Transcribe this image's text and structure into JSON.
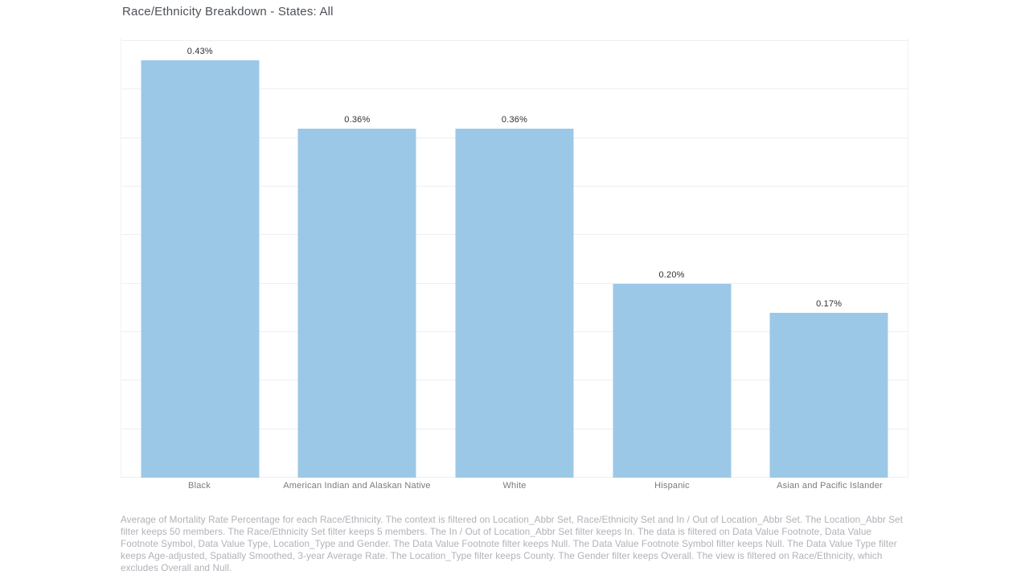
{
  "title": "Race/Ethnicity Breakdown - States: All",
  "chart_data": {
    "type": "bar",
    "title": "Race/Ethnicity Breakdown - States: All",
    "categories": [
      "Black",
      "American Indian and Alaskan Native",
      "White",
      "Hispanic",
      "Asian and Pacific Islander"
    ],
    "values": [
      0.43,
      0.36,
      0.36,
      0.2,
      0.17
    ],
    "value_labels": [
      "0.43%",
      "0.36%",
      "0.36%",
      "0.20%",
      "0.17%"
    ],
    "xlabel": "",
    "ylabel": "",
    "ylim": [
      0,
      0.45
    ],
    "gridline_step": 0.05,
    "grid": "on",
    "legend": "none",
    "bar_color": "#9cc8e8",
    "gridline_color": "#efefef"
  },
  "caption": {
    "text": "Average of Mortality Rate Percentage for each Race/Ethnicity. The context is filtered on Location_Abbr Set, Race/Ethnicity Set and In / Out of Location_Abbr Set. The Location_Abbr Set filter keeps 50 members. The Race/Ethnicity Set filter keeps 5 members. The In / Out of Location_Abbr Set filter keeps In. The data is filtered on Data Value Footnote, Data Value Footnote Symbol, Data Value Type, Location_Type and Gender. The Data Value Footnote filter keeps Null. The Data Value Footnote Symbol filter keeps Null. The Data Value Type filter keeps Age-adjusted, Spatially Smoothed, 3-year Average Rate. The Location_Type filter keeps County. The Gender filter keeps Overall. The view is filtered on Race/Ethnicity, which excludes Overall and Null."
  }
}
